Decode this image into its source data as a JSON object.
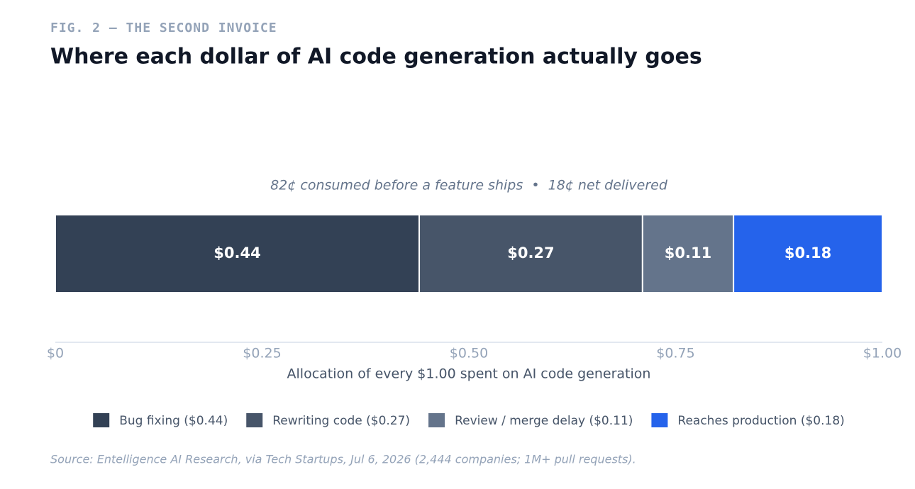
{
  "chart_data": {
    "type": "bar",
    "orientation": "horizontal",
    "stacked": true,
    "eyebrow": "FIG. 2 — THE SECOND INVOICE",
    "title": "Where each dollar of AI code generation actually goes",
    "subtitle": "82¢ consumed before a feature ships  •  18¢ net delivered",
    "x_label": "Allocation of every $1.00 spent on AI code generation",
    "source": "Source: Entelligence AI Research, via Tech Startups, Jul 6, 2026 (2,444 companies; 1M+ pull requests).",
    "series": [
      {
        "name": "Bug fixing ($0.44)",
        "color": "#334155",
        "values": [
          0.44
        ],
        "value_labels": [
          "$0.44"
        ]
      },
      {
        "name": "Rewriting code ($0.27)",
        "color": "#475569",
        "values": [
          0.27
        ],
        "value_labels": [
          "$0.27"
        ]
      },
      {
        "name": "Review / merge delay ($0.11)",
        "color": "#64748b",
        "values": [
          0.11
        ],
        "value_labels": [
          "$0.11"
        ]
      },
      {
        "name": "Reaches production ($0.18)",
        "color": "#2563eb",
        "values": [
          0.18
        ],
        "value_labels": [
          "$0.18"
        ]
      }
    ],
    "xlim": [
      0,
      1
    ],
    "xticks": [
      {
        "value": 0,
        "label": "$0"
      },
      {
        "value": 0.25,
        "label": "$0.25"
      },
      {
        "value": 0.5,
        "label": "$0.50"
      },
      {
        "value": 0.75,
        "label": "$0.75"
      },
      {
        "value": 1,
        "label": "$1.00"
      }
    ],
    "legend": "bottom"
  }
}
